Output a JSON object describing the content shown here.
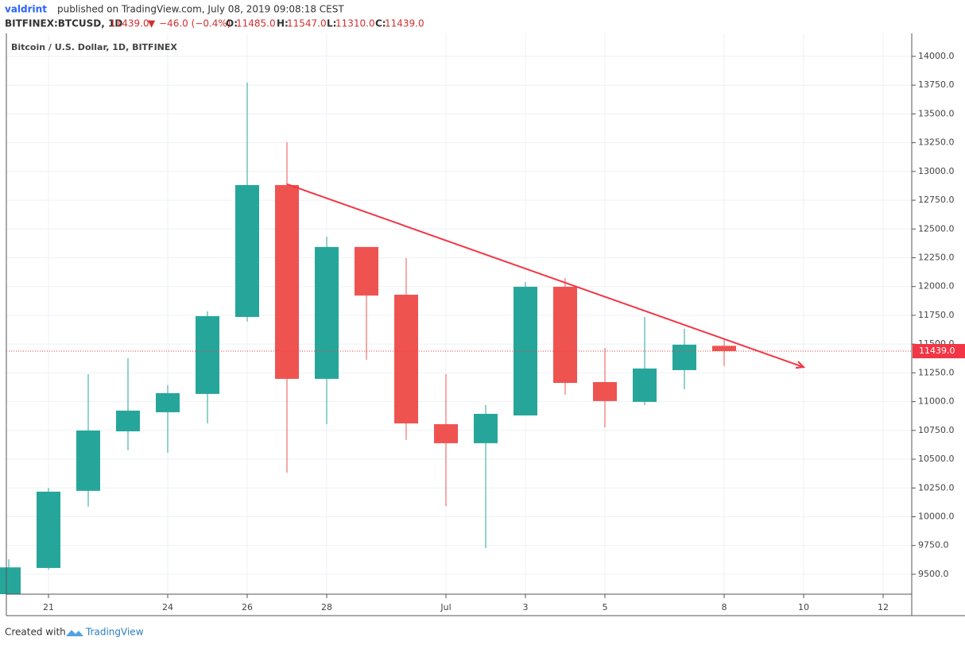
{
  "header": {
    "author": "valdrint",
    "published": "published on TradingView.com, July 08, 2019 09:08:18 CEST",
    "symbol": "BITFINEX:BTCUSD, 1D",
    "last": "11439.0",
    "arrow": "▼",
    "change": "−46.0 (−0.4%)",
    "o": "O:",
    "open": "11485.0",
    "h": "H:",
    "high": "11547.0",
    "l": "L:",
    "low": "11310.0",
    "c": "C:",
    "close": "11439.0"
  },
  "chart_data": {
    "type": "candlestick",
    "title": "Bitcoin / U.S. Dollar, 1D, BITFINEX",
    "categories": [
      null,
      "21",
      null,
      null,
      "24",
      null,
      "26",
      null,
      "28",
      null,
      null,
      "Jul",
      null,
      "3",
      null,
      "5",
      null,
      null,
      "8",
      null,
      "10",
      null,
      "12"
    ],
    "open": [
      9280,
      9555,
      10225,
      10742,
      10908,
      11067,
      11736,
      12882,
      11198,
      12344,
      11929,
      10804,
      10639,
      10880,
      11998,
      11170,
      10998,
      11274,
      11485,
      null,
      null,
      null,
      null
    ],
    "high": [
      9630,
      10250,
      11239,
      11377,
      11143,
      11785,
      13772,
      13255,
      12433,
      12344,
      12247,
      11239,
      10970,
      12040,
      12074,
      11467,
      11736,
      11633,
      11547,
      null,
      null,
      null,
      null
    ],
    "low": [
      9270,
      9540,
      10087,
      10577,
      10556,
      10811,
      11695,
      10383,
      10804,
      11363,
      10666,
      10093,
      9728,
      10880,
      11060,
      10777,
      10970,
      11108,
      11310,
      null,
      null,
      null,
      null
    ],
    "close": [
      9560,
      10218,
      10749,
      10922,
      11074,
      11743,
      12882,
      11198,
      12344,
      11922,
      10811,
      10639,
      10894,
      11998,
      11163,
      11005,
      11288,
      11495,
      11439,
      null,
      null,
      null,
      null
    ],
    "up_color": "#26a69a",
    "down_color": "#ef5350",
    "ylim": [
      9327,
      14200
    ],
    "yticks": [
      {
        "value": 9500,
        "label": "9500.0"
      },
      {
        "value": 9750,
        "label": "9750.0"
      },
      {
        "value": 10000,
        "label": "10000.0"
      },
      {
        "value": 10250,
        "label": "10250.0"
      },
      {
        "value": 10500,
        "label": "10500.0"
      },
      {
        "value": 10750,
        "label": "10750.0"
      },
      {
        "value": 11000,
        "label": "11000.0"
      },
      {
        "value": 11250,
        "label": "11250.0"
      },
      {
        "value": 11500,
        "label": "11500.0"
      },
      {
        "value": 11750,
        "label": "11750.0"
      },
      {
        "value": 12000,
        "label": "12000.0"
      },
      {
        "value": 12250,
        "label": "12250.0"
      },
      {
        "value": 12500,
        "label": "12500.0"
      },
      {
        "value": 12750,
        "label": "12750.0"
      },
      {
        "value": 13000,
        "label": "13000.0"
      },
      {
        "value": 13250,
        "label": "13250.0"
      },
      {
        "value": 13500,
        "label": "13500.0"
      },
      {
        "value": 13750,
        "label": "13750.0"
      },
      {
        "value": 14000,
        "label": "14000.0"
      }
    ],
    "grid": true,
    "last_price": {
      "value": 11439,
      "label": "11439.0",
      "color": "#f23645"
    },
    "trendline": {
      "color": "#f23645",
      "x": [
        7,
        20
      ],
      "y": [
        12890,
        11300
      ]
    }
  },
  "footer": {
    "created": "Created with",
    "brand": "TradingView"
  }
}
